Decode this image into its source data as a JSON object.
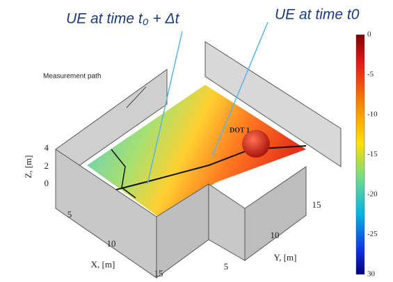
{
  "annotations": {
    "ue_later": "UE at time t₀ + Δt",
    "ue_now": "UE at time t0",
    "measurement_path": "Measurement path",
    "dot": "DOT 1"
  },
  "axes": {
    "z_label": "Z, [m]",
    "z_ticks": [
      "4",
      "2",
      "0"
    ],
    "x_label": "X, [m]",
    "x_ticks": [
      "5",
      "10",
      "15"
    ],
    "y_label": "Y, [m]",
    "y_ticks": [
      "5",
      "10",
      "15"
    ]
  },
  "colorbar": {
    "ticks": [
      "0",
      "-5",
      "-10",
      "-15",
      "-20",
      "-25",
      "30"
    ]
  }
}
